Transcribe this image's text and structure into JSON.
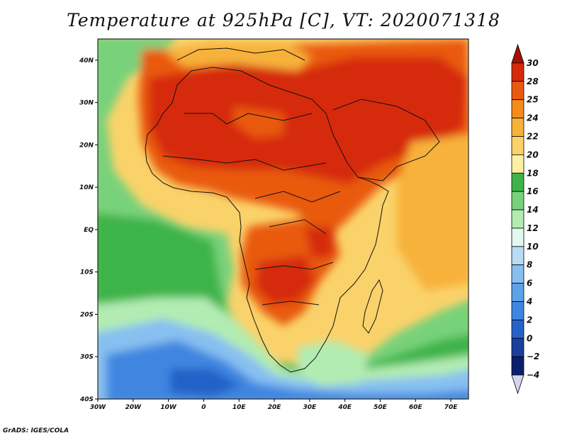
{
  "title": "Temperature at 925hPa [C], VT: 2020071318",
  "credit": "GrADS: IGES/COLA",
  "map": {
    "lon_range": [
      -30,
      75
    ],
    "lat_range": [
      -40,
      45
    ],
    "lat_labels": [
      "40N",
      "30N",
      "20N",
      "10N",
      "EQ",
      "10S",
      "20S",
      "30S",
      "40S"
    ],
    "lat_values": [
      40,
      30,
      20,
      10,
      0,
      -10,
      -20,
      -30,
      -40
    ],
    "lon_labels": [
      "30W",
      "20W",
      "10W",
      "0",
      "10E",
      "20E",
      "30E",
      "40E",
      "50E",
      "60E",
      "70E"
    ],
    "lon_values": [
      -30,
      -20,
      -10,
      0,
      10,
      20,
      30,
      40,
      50,
      60,
      70
    ]
  },
  "colorbar": {
    "labels": [
      "30",
      "28",
      "25",
      "24",
      "22",
      "20",
      "18",
      "16",
      "14",
      "12",
      "10",
      "8",
      "6",
      "4",
      "2",
      "0",
      "−2",
      "−4"
    ],
    "colors": [
      "#a50f05",
      "#d62a0c",
      "#e95a10",
      "#f48c1c",
      "#f7b23a",
      "#fad26a",
      "#fdf0a0",
      "#3cb44a",
      "#78d27a",
      "#b2ecb2",
      "#e2f8f0",
      "#b8dcf6",
      "#87c0f0",
      "#5ea2e8",
      "#3f86e0",
      "#2462c8",
      "#1a3fa0",
      "#0a1f6e",
      "#d4d4ee"
    ]
  }
}
